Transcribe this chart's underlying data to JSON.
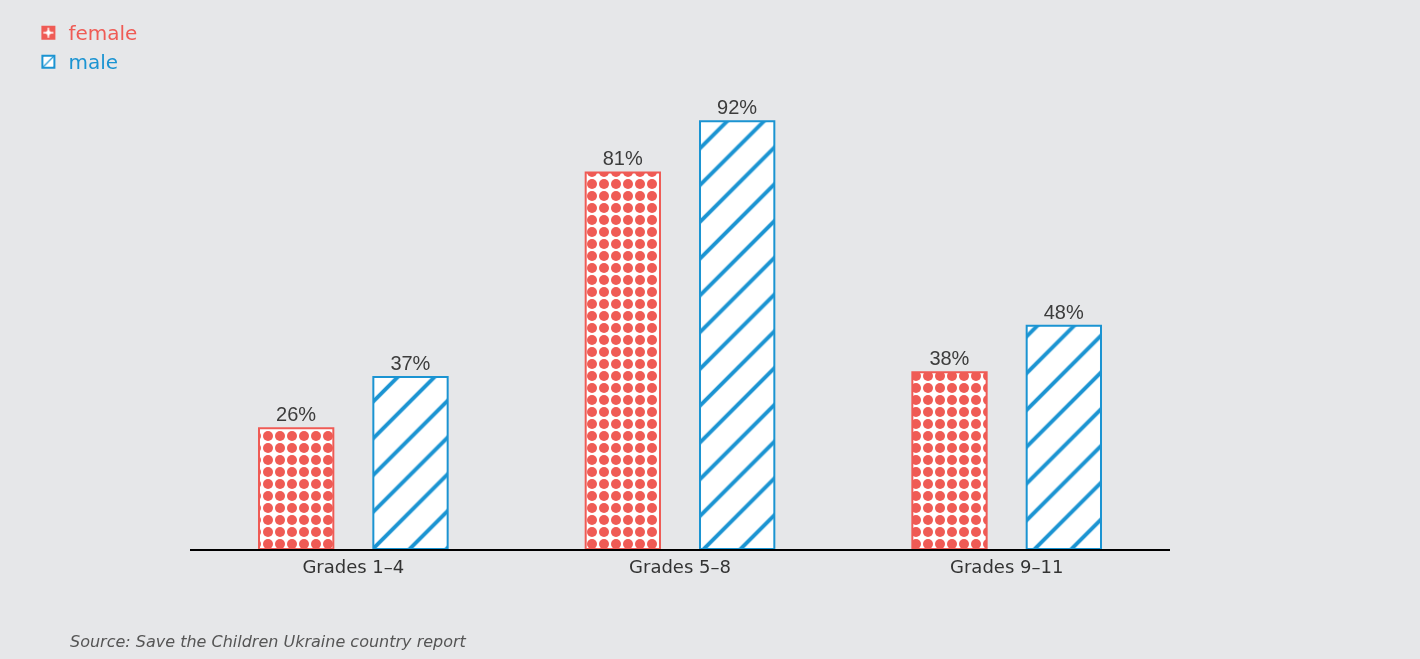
{
  "chart_data": {
    "type": "bar",
    "categories": [
      "Grades 1–4",
      "Grades 5–8",
      "Grades 9–11"
    ],
    "series": [
      {
        "name": "female",
        "color": "#ef5b55",
        "values": [
          26,
          81,
          38
        ],
        "value_labels": [
          "26%",
          "81%",
          "38%"
        ]
      },
      {
        "name": "male",
        "color": "#1b94d2",
        "values": [
          37,
          92,
          48
        ],
        "value_labels": [
          "37%",
          "92%",
          "48%"
        ]
      }
    ],
    "legend": "top left",
    "grid": false,
    "tick_labels": "x",
    "annotations": [
      "Source: Save the Children Ukraine country report"
    ]
  }
}
